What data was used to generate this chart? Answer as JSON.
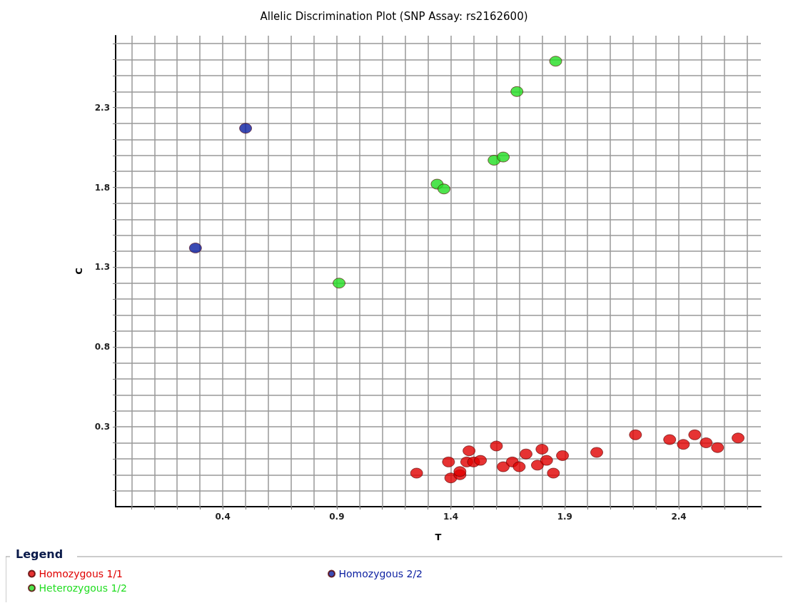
{
  "chart_data": {
    "type": "scatter",
    "title": "Allelic Discrimination Plot (SNP Assay: rs2162600)",
    "xlabel": "T",
    "ylabel": "C",
    "legend_title": "Legend",
    "legend": "bottom left",
    "marker": "circle",
    "grid": true,
    "xlim": [
      -0.07,
      2.76
    ],
    "ylim": [
      -0.2,
      2.75
    ],
    "xticks": [
      {
        "value": 0,
        "label": null
      },
      {
        "value": 0.1,
        "label": null
      },
      {
        "value": 0.2,
        "label": null
      },
      {
        "value": 0.3,
        "label": null
      },
      0.4,
      {
        "value": 0.5,
        "label": null
      },
      {
        "value": 0.6,
        "label": null
      },
      {
        "value": 0.7,
        "label": null
      },
      {
        "value": 0.8,
        "label": null
      },
      0.9,
      {
        "value": 1.0,
        "label": null
      },
      {
        "value": 1.1,
        "label": null
      },
      {
        "value": 1.2,
        "label": null
      },
      {
        "value": 1.3,
        "label": null
      },
      1.4,
      {
        "value": 1.5,
        "label": null
      },
      {
        "value": 1.6,
        "label": null
      },
      {
        "value": 1.7,
        "label": null
      },
      {
        "value": 1.8,
        "label": null
      },
      1.9,
      {
        "value": 2.0,
        "label": null
      },
      {
        "value": 2.1,
        "label": null
      },
      {
        "value": 2.2,
        "label": null
      },
      {
        "value": 2.3,
        "label": null
      },
      2.4,
      {
        "value": 2.5,
        "label": null
      },
      {
        "value": 2.6,
        "label": null
      },
      {
        "value": 2.7,
        "label": null
      }
    ],
    "yticks": [
      {
        "value": -0.1,
        "label": null
      },
      {
        "value": 0,
        "label": null
      },
      {
        "value": 0.1,
        "label": null
      },
      {
        "value": 0.2,
        "label": null
      },
      0.3,
      {
        "value": 0.4,
        "label": null
      },
      {
        "value": 0.5,
        "label": null
      },
      {
        "value": 0.6,
        "label": null
      },
      {
        "value": 0.7,
        "label": null
      },
      0.8,
      {
        "value": 0.9,
        "label": null
      },
      {
        "value": 1.0,
        "label": null
      },
      {
        "value": 1.1,
        "label": null
      },
      {
        "value": 1.2,
        "label": null
      },
      1.3,
      {
        "value": 1.4,
        "label": null
      },
      {
        "value": 1.5,
        "label": null
      },
      {
        "value": 1.6,
        "label": null
      },
      {
        "value": 1.7,
        "label": null
      },
      1.8,
      {
        "value": 1.9,
        "label": null
      },
      {
        "value": 2.0,
        "label": null
      },
      {
        "value": 2.1,
        "label": null
      },
      {
        "value": 2.2,
        "label": null
      },
      2.3,
      {
        "value": 2.4,
        "label": null
      },
      {
        "value": 2.5,
        "label": null
      },
      {
        "value": 2.6,
        "label": null
      },
      {
        "value": 2.7,
        "label": null
      }
    ],
    "series": [
      {
        "name": "Homozygous 1/1",
        "color": "#e00000",
        "x": [
          1.25,
          1.39,
          1.4,
          1.44,
          1.44,
          1.48,
          1.47,
          1.5,
          1.53,
          1.6,
          1.63,
          1.67,
          1.7,
          1.73,
          1.8,
          1.78,
          1.82,
          1.85,
          1.89,
          2.04,
          2.21,
          2.36,
          2.42,
          2.47,
          2.52,
          2.57,
          2.66
        ],
        "values": [
          0.01,
          0.08,
          -0.02,
          0.0,
          0.02,
          0.15,
          0.08,
          0.08,
          0.09,
          0.18,
          0.05,
          0.08,
          0.05,
          0.13,
          0.16,
          0.06,
          0.09,
          0.01,
          0.12,
          0.14,
          0.25,
          0.22,
          0.19,
          0.25,
          0.2,
          0.17,
          0.23
        ]
      },
      {
        "name": "Homozygous 2/2",
        "color": "#0a1ea0",
        "x": [
          0.5,
          0.28
        ],
        "values": [
          2.17,
          1.42
        ]
      },
      {
        "name": "Heterozygous 1/2",
        "color": "#22dd22",
        "x": [
          0.91,
          1.34,
          1.37,
          1.59,
          1.63,
          1.69,
          1.86
        ],
        "values": [
          1.2,
          1.82,
          1.79,
          1.97,
          1.99,
          2.4,
          2.59
        ]
      }
    ]
  }
}
